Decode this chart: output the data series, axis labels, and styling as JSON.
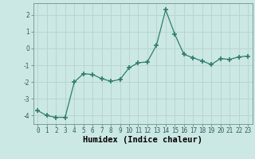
{
  "x": [
    0,
    1,
    2,
    3,
    4,
    5,
    6,
    7,
    8,
    9,
    10,
    11,
    12,
    13,
    14,
    15,
    16,
    17,
    18,
    19,
    20,
    21,
    22,
    23
  ],
  "y": [
    -3.7,
    -4.0,
    -4.1,
    -4.1,
    -2.0,
    -1.5,
    -1.55,
    -1.8,
    -1.95,
    -1.85,
    -1.15,
    -0.85,
    -0.8,
    0.2,
    2.3,
    0.85,
    -0.35,
    -0.55,
    -0.75,
    -0.95,
    -0.6,
    -0.65,
    -0.5,
    -0.45
  ],
  "line_color": "#2e7d6e",
  "marker": "+",
  "marker_size": 4,
  "marker_lw": 1.2,
  "bg_color": "#cce8e4",
  "grid_color": "#b8d5d0",
  "xlabel": "Humidex (Indice chaleur)",
  "xlim": [
    -0.5,
    23.5
  ],
  "ylim": [
    -4.5,
    2.7
  ],
  "yticks": [
    -4,
    -3,
    -2,
    -1,
    0,
    1,
    2
  ],
  "xticks": [
    0,
    1,
    2,
    3,
    4,
    5,
    6,
    7,
    8,
    9,
    10,
    11,
    12,
    13,
    14,
    15,
    16,
    17,
    18,
    19,
    20,
    21,
    22,
    23
  ],
  "tick_label_fontsize": 5.5,
  "xlabel_fontsize": 7.5,
  "linewidth": 0.9
}
